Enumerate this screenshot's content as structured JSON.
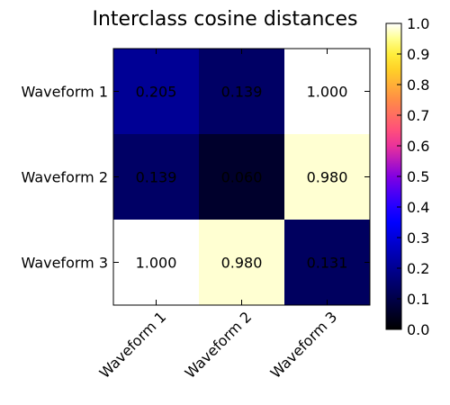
{
  "chart_data": {
    "type": "heatmap",
    "title": "Interclass cosine distances",
    "row_labels": [
      "Waveform 1",
      "Waveform 2",
      "Waveform 3"
    ],
    "col_labels": [
      "Waveform 1",
      "Waveform 2",
      "Waveform 3"
    ],
    "values": [
      [
        0.205,
        0.139,
        1.0
      ],
      [
        0.139,
        0.06,
        0.98
      ],
      [
        1.0,
        0.98,
        0.131
      ]
    ],
    "cell_text": [
      [
        "0.205",
        "0.139",
        "1.000"
      ],
      [
        "0.139",
        "0.060",
        "0.980"
      ],
      [
        "1.000",
        "0.980",
        "0.131"
      ]
    ],
    "colormap": "gnuplot2",
    "vmin": 0.0,
    "vmax": 1.0,
    "colorbar_ticks": [
      "0.0",
      "0.1",
      "0.2",
      "0.3",
      "0.4",
      "0.5",
      "0.6",
      "0.7",
      "0.8",
      "0.9",
      "1.0"
    ],
    "xtick_rotation_deg": 45,
    "grid": false
  }
}
